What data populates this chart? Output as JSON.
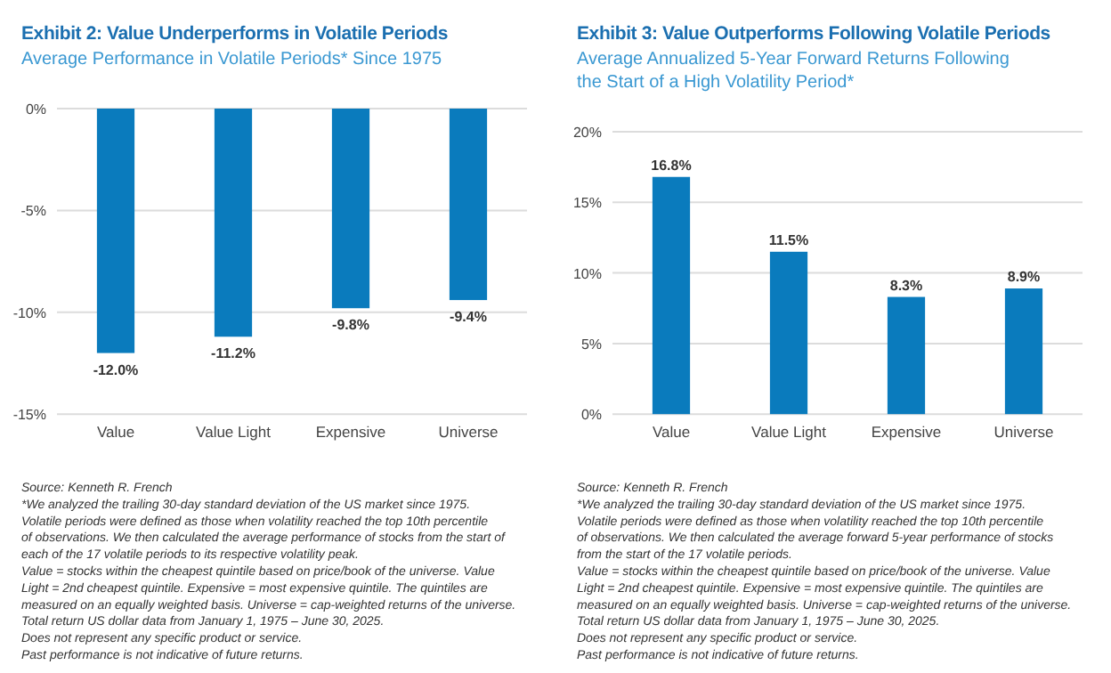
{
  "chart_data": [
    {
      "type": "bar",
      "title": "Exhibit 2: Value Underperforms in Volatile Periods",
      "subtitle": "Average Performance in Volatile Periods* Since 1975",
      "categories": [
        "Value",
        "Value Light",
        "Expensive",
        "Universe"
      ],
      "values": [
        -12.0,
        -11.2,
        -9.8,
        -9.4
      ],
      "value_labels": [
        "-12.0%",
        "-11.2%",
        "-9.8%",
        "-9.4%"
      ],
      "color": "#0a7bbd",
      "ylim": [
        -15,
        0
      ],
      "yticks": [
        {
          "value": 0,
          "label": "0%"
        },
        {
          "value": -5,
          "label": "-5%"
        },
        {
          "value": -10,
          "label": "-10%"
        },
        {
          "value": -15,
          "label": "-15%"
        }
      ],
      "grid": "y",
      "annotations": [
        "Source: Kenneth R. French",
        "*We analyzed the trailing 30-day standard deviation of the US market since 1975. Volatile periods were defined as those when volatility reached the top 10th percentile of observations. We then calculated the average performance of stocks from the start of each of the 17 volatile periods to its respective volatility peak.",
        "Value = stocks within the cheapest quintile based on price/book of the universe. Value Light = 2nd cheapest quintile. Expensive = most expensive quintile. The quintiles are measured on an equally weighted basis. Universe = cap-weighted returns of the universe.",
        "Total return US dollar data from January 1, 1975 – June 30, 2025.",
        "Does not represent any specific product or service.",
        "Past performance is not indicative of future returns."
      ]
    },
    {
      "type": "bar",
      "title": "Exhibit 3: Value Outperforms Following Volatile Periods",
      "subtitle": "Average Annualized 5-Year Forward Returns Following the Start of a High Volatility Period*",
      "categories": [
        "Value",
        "Value Light",
        "Expensive",
        "Universe"
      ],
      "values": [
        16.8,
        11.5,
        8.3,
        8.9
      ],
      "value_labels": [
        "16.8%",
        "11.5%",
        "8.3%",
        "8.9%"
      ],
      "color": "#0a7bbd",
      "ylim": [
        0,
        20
      ],
      "yticks": [
        {
          "value": 0,
          "label": "0%"
        },
        {
          "value": 5,
          "label": "5%"
        },
        {
          "value": 10,
          "label": "10%"
        },
        {
          "value": 15,
          "label": "15%"
        },
        {
          "value": 20,
          "label": "20%"
        }
      ],
      "grid": "y",
      "annotations": [
        "Source: Kenneth R. French",
        "*We analyzed the trailing 30-day standard deviation of the US market since 1975. Volatile periods were defined as those when volatility reached the top 10th percentile of observations. We then calculated the average forward 5-year performance of stocks from the start of the 17 volatile periods.",
        "Value = stocks within the cheapest quintile based on price/book of the universe. Value Light = 2nd cheapest quintile. Expensive = most expensive quintile. The quintiles are measured on an equally weighted basis. Universe = cap-weighted returns of the universe.",
        "Total return US dollar data from January 1, 1975 – June 30, 2025.",
        "Does not represent any specific product or service.",
        "Past performance is not indicative of future returns."
      ]
    }
  ]
}
